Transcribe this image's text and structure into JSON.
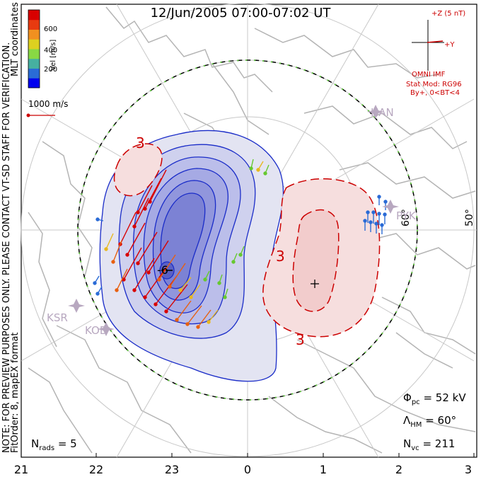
{
  "title": "12/Jun/2005 07:00-07:02 UT",
  "side_notes": {
    "note1": "NOTE: FOR PREVIEW PURPOSES ONLY. PLEASE CONTACT VT-SD STAFF FOR VERIFICATION.",
    "note2": "FitOrder: 8, mapEX format",
    "coords": "MLT coordinates"
  },
  "colorbar": {
    "unit_label": "Vel [m/s]",
    "ticks": [
      "600",
      "400",
      "200"
    ],
    "colors": [
      "#0000ee",
      "#2a6bd6",
      "#46b0a0",
      "#88d844",
      "#ddd020",
      "#f09020",
      "#e83a10",
      "#d80000"
    ]
  },
  "scale_vector": {
    "label": "1000 m/s",
    "color": "#cc0000"
  },
  "imf": {
    "z_label": "+Z (5 nT)",
    "y_label": "+Y",
    "omni_label": "OMNI IMF",
    "model_label": "Stat Mod: RG96",
    "condition_label": "By+, 0<BT<4",
    "color": "#cc0000"
  },
  "contours": {
    "negative_label": "-6",
    "positive_label_1": "3",
    "positive_label_2": "3",
    "dawn_label": "3",
    "neg_color": "#1a2cc8",
    "pos_color": "#cc0000"
  },
  "latitude_labels": {
    "inner": "60°",
    "outer": "50°"
  },
  "stations": [
    "HAN",
    "PYK",
    "KSR",
    "KOD"
  ],
  "mlt_ticks": [
    "21",
    "22",
    "23",
    "0",
    "1",
    "2",
    "3"
  ],
  "stats": {
    "phi_pc_label": "Φ",
    "phi_pc_sub": "pc",
    "phi_pc_value": "= 52 kV",
    "lambda_hm_label": "Λ",
    "lambda_hm_sub": "HM",
    "lambda_hm_value": "= 60°",
    "n_vc_label": "N",
    "n_vc_sub": "vc",
    "n_vc_value": "= 211",
    "n_rads_label": "N",
    "n_rads_sub": "rads",
    "n_rads_value": "= 5"
  }
}
